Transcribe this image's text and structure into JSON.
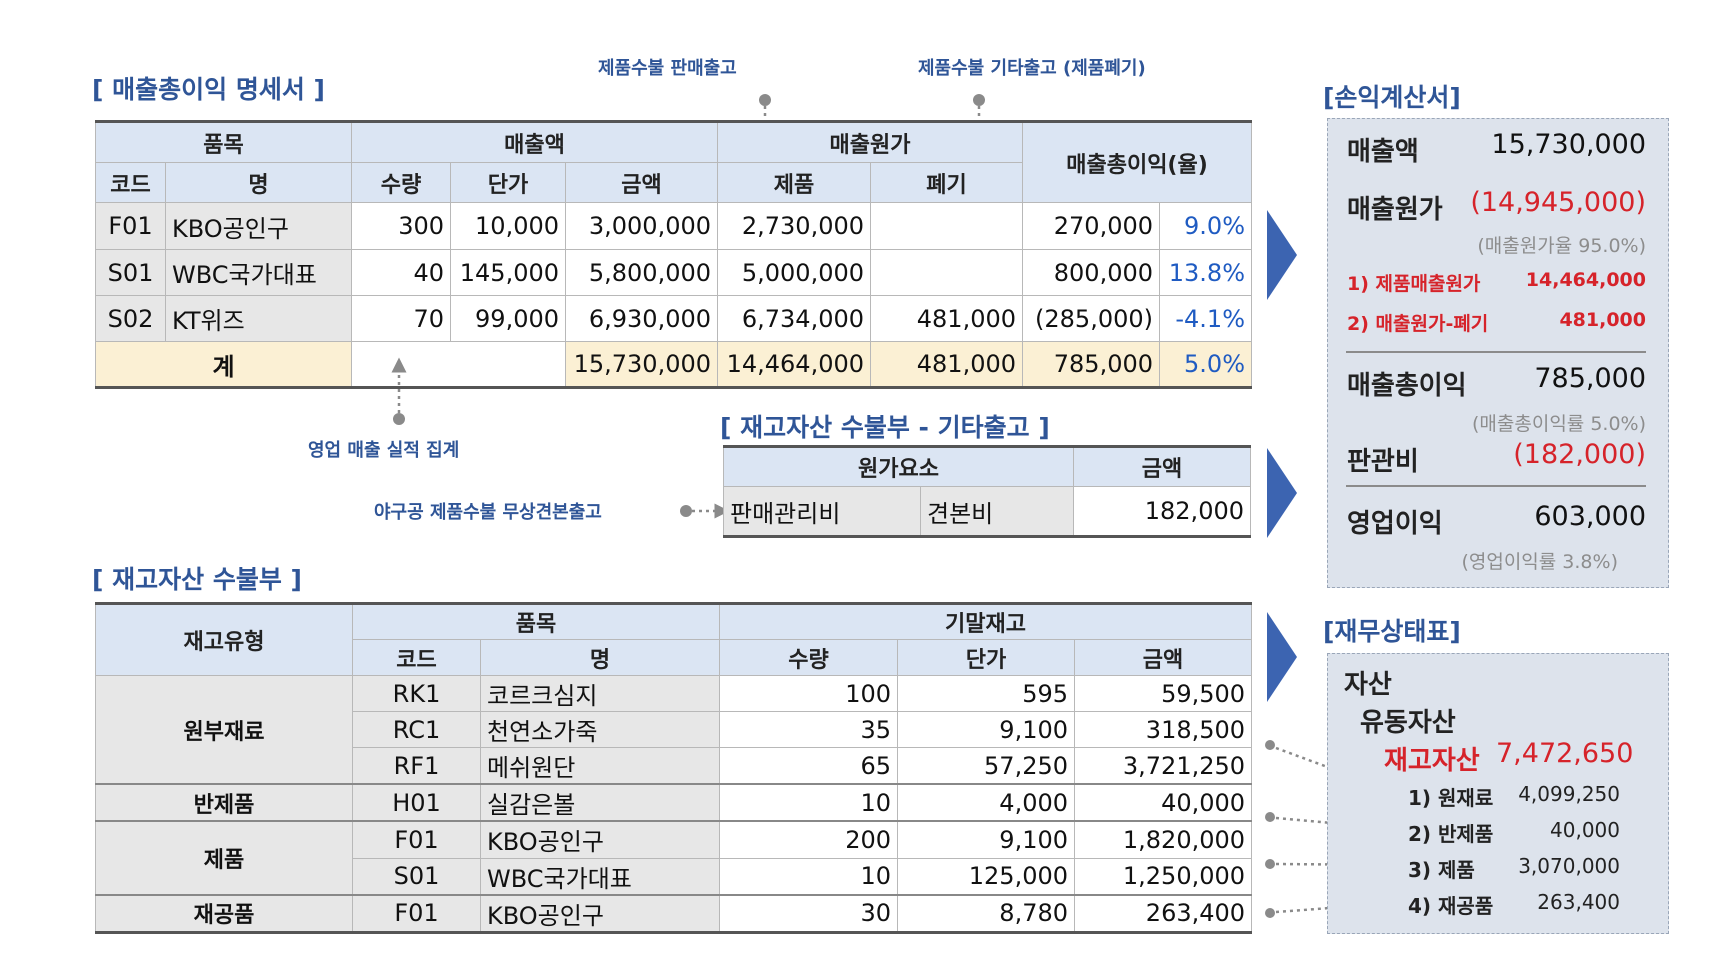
{
  "titles": {
    "gross_profit": "[ 매출총이익 명세서 ]",
    "inventory_other": "[ 재고자산 수불부 - 기타출고 ]",
    "inventory": "[ 재고자산 수불부 ]",
    "income_statement": "[손익계산서]",
    "balance_sheet": "[재무상태표]"
  },
  "notes": {
    "sales_out": "제품수불 판매출고",
    "other_out": "제품수불 기타출고 (제품폐기)",
    "sales_agg": "영업 매출 실적 집계",
    "sample_out": "야구공 제품수불 무상견본출고"
  },
  "gp_table": {
    "headers": {
      "item": "품목",
      "code": "코드",
      "name": "명",
      "sales": "매출액",
      "qty": "수량",
      "price": "단가",
      "amount": "금액",
      "cogs": "매출원가",
      "product": "제품",
      "disposal": "폐기",
      "gross_profit": "매출총이익(율)"
    },
    "rows": [
      {
        "code": "F01",
        "name": "KBO공인구",
        "qty": "300",
        "price": "10,000",
        "amount": "3,000,000",
        "product": "2,730,000",
        "disposal": "",
        "gp": "270,000",
        "rate": "9.0%"
      },
      {
        "code": "S01",
        "name": "WBC국가대표",
        "qty": "40",
        "price": "145,000",
        "amount": "5,800,000",
        "product": "5,000,000",
        "disposal": "",
        "gp": "800,000",
        "rate": "13.8%"
      },
      {
        "code": "S02",
        "name": "KT위즈",
        "qty": "70",
        "price": "99,000",
        "amount": "6,930,000",
        "product": "6,734,000",
        "disposal": "481,000",
        "gp": "(285,000)",
        "rate": "-4.1%"
      }
    ],
    "total": {
      "label": "계",
      "amount": "15,730,000",
      "product": "14,464,000",
      "disposal": "481,000",
      "gp": "785,000",
      "rate": "5.0%"
    }
  },
  "other_table": {
    "headers": {
      "cost_element": "원가요소",
      "amount": "금액"
    },
    "row": {
      "account": "판매관리비",
      "sub": "견본비",
      "amount": "182,000"
    }
  },
  "inv_table": {
    "headers": {
      "type": "재고유형",
      "item": "품목",
      "code": "코드",
      "name": "명",
      "ending": "기말재고",
      "qty": "수량",
      "price": "단가",
      "amount": "금액"
    },
    "groups": [
      {
        "type": "원부재료",
        "rows": [
          {
            "code": "RK1",
            "name": "코르크심지",
            "qty": "100",
            "price": "595",
            "amount": "59,500"
          },
          {
            "code": "RC1",
            "name": "천연소가죽",
            "qty": "35",
            "price": "9,100",
            "amount": "318,500"
          },
          {
            "code": "RF1",
            "name": "메쉬원단",
            "qty": "65",
            "price": "57,250",
            "amount": "3,721,250"
          }
        ]
      },
      {
        "type": "반제품",
        "rows": [
          {
            "code": "H01",
            "name": "실감은볼",
            "qty": "10",
            "price": "4,000",
            "amount": "40,000"
          }
        ]
      },
      {
        "type": "제품",
        "rows": [
          {
            "code": "F01",
            "name": "KBO공인구",
            "qty": "200",
            "price": "9,100",
            "amount": "1,820,000"
          },
          {
            "code": "S01",
            "name": "WBC국가대표",
            "qty": "10",
            "price": "125,000",
            "amount": "1,250,000"
          }
        ]
      },
      {
        "type": "재공품",
        "rows": [
          {
            "code": "F01",
            "name": "KBO공인구",
            "qty": "30",
            "price": "8,780",
            "amount": "263,400"
          }
        ]
      }
    ]
  },
  "income": {
    "sales_label": "매출액",
    "sales": "15,730,000",
    "cogs_label": "매출원가",
    "cogs": "(14,945,000)",
    "cogs_rate": "(매출원가율 95.0%)",
    "cogs1_label": "1) 제품매출원가",
    "cogs1": "14,464,000",
    "cogs2_label": "2) 매출원가-폐기",
    "cogs2": "481,000",
    "gp_label": "매출총이익",
    "gp": "785,000",
    "gp_rate": "(매출총이익률 5.0%)",
    "sga_label": "판관비",
    "sga": "(182,000)",
    "op_label": "영업이익",
    "op": "603,000",
    "op_rate": "(영업이익률 3.8%)"
  },
  "balance": {
    "assets": "자산",
    "current": "유동자산",
    "inventory_label": "재고자산",
    "inventory": "7,472,650",
    "items": [
      {
        "label": "1) 원재료",
        "value": "4,099,250"
      },
      {
        "label": "2) 반제품",
        "value": "40,000"
      },
      {
        "label": "3) 제품",
        "value": "3,070,000"
      },
      {
        "label": "4) 재공품",
        "value": "263,400"
      }
    ]
  },
  "colors": {
    "accent": "#2f5597",
    "header_bg": "#dbe5f3",
    "arrow": "#3c64b1",
    "red": "#d6232a",
    "total_bg": "#fbf0d4"
  }
}
